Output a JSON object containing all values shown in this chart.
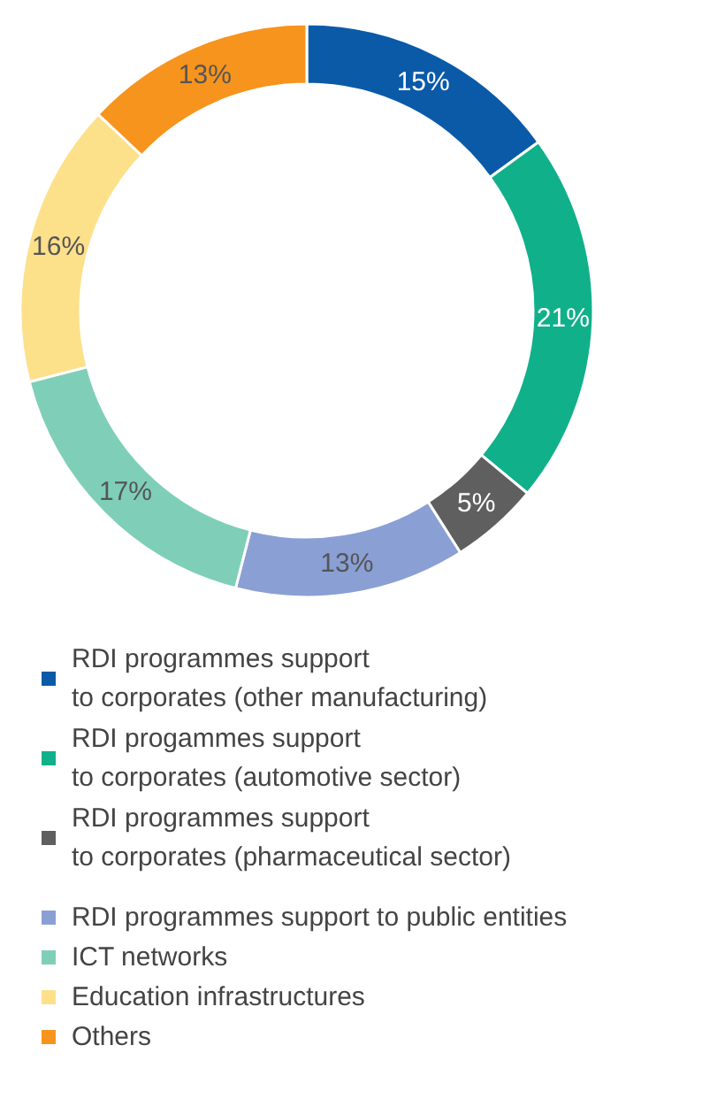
{
  "chart_data": {
    "type": "donut",
    "categories": [
      "RDI programmes support\nto corporates (other manufacturing)",
      "RDI progammes support\nto corporates (automotive sector)",
      "RDI programmes support\nto corporates (pharmaceutical sector)",
      "RDI programmes support to public entities",
      "ICT networks",
      "Education infrastructures",
      "Others"
    ],
    "values": [
      15,
      21,
      5,
      13,
      17,
      16,
      13
    ],
    "value_labels": [
      "15%",
      "21%",
      "5%",
      "13%",
      "17%",
      "16%",
      "13%"
    ],
    "colors": [
      "#0a5aa8",
      "#10b08a",
      "#5f5f5f",
      "#8a9fd4",
      "#7fcfb8",
      "#fde08a",
      "#f7941d"
    ],
    "legend": "bottom"
  }
}
